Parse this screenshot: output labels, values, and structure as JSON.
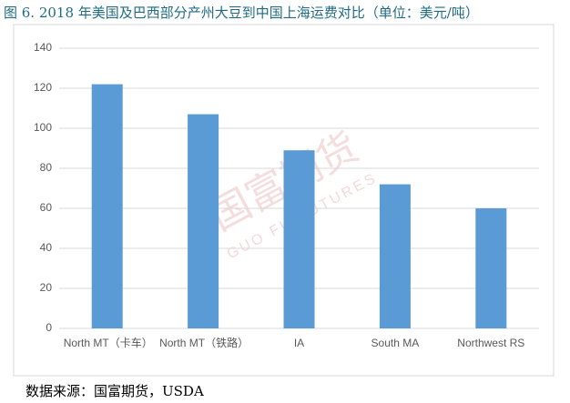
{
  "chart_data": {
    "type": "bar",
    "title": "图 6. 2018 年美国及巴西部分产州大豆到中国上海运费对比（单位：美元/吨）",
    "source": "数据来源：国富期货，USDA",
    "watermark": "国富期货",
    "watermark_sub": "GUO FU FUTURES",
    "categories": [
      "North MT（卡车）",
      "North MT（铁路）",
      "IA",
      "South MA",
      "Northwest RS"
    ],
    "values": [
      122,
      107,
      89,
      72,
      60
    ],
    "color": "#5b9bd5",
    "ylim": [
      0,
      140
    ],
    "yticks": [
      0,
      20,
      40,
      60,
      80,
      100,
      120,
      140
    ],
    "grid": true
  }
}
